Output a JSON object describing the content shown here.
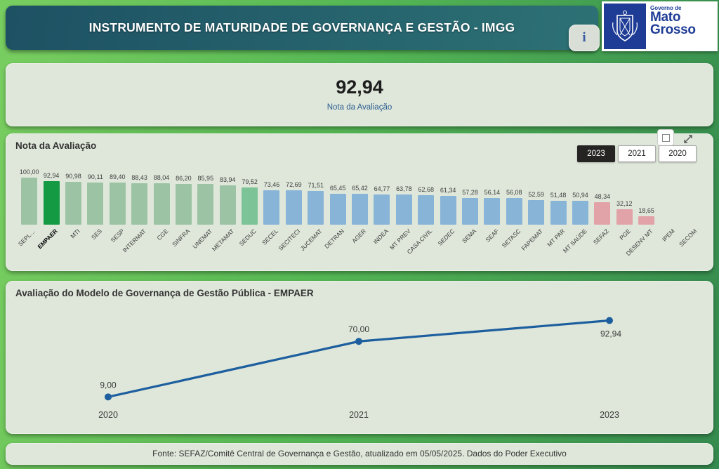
{
  "header": {
    "title": "INSTRUMENTO DE MATURIDADE DE GOVERNANÇA E GESTÃO - IMGG",
    "info_icon": "i",
    "logo": {
      "small": "Governo de",
      "line1": "Mato",
      "line2": "Grosso"
    }
  },
  "kpi": {
    "value": "92,94",
    "label": "Nota da Avaliação"
  },
  "bar_card": {
    "title": "Nota da Avaliação",
    "year_buttons": [
      {
        "label": "2023",
        "selected": true
      },
      {
        "label": "2021",
        "selected": false
      },
      {
        "label": "2020",
        "selected": false
      }
    ]
  },
  "palette": {
    "light_green": "#9cc4a4",
    "dark_green": "#149a43",
    "medium_green": "#7cc397",
    "blue": "#88b4d8",
    "pink": "#e2a3a8",
    "line_blue": "#1d5f9e"
  },
  "chart_data": [
    {
      "type": "bar",
      "title": "Nota da Avaliação",
      "categories": [
        "SEPL…",
        "EMPAER",
        "MTI",
        "SES",
        "SESP",
        "INTERMAT",
        "CGE",
        "SINFRA",
        "UNEMAT",
        "METAMAT",
        "SEDUC",
        "SECEL",
        "SECITECI",
        "JUCEMAT",
        "DETRAN",
        "AGER",
        "INDEA",
        "MT PREV",
        "CASA CIVIL",
        "SEDEC",
        "SEMA",
        "SEAF",
        "SETASC",
        "FAPEMAT",
        "MT PAR",
        "MT SAÚDE",
        "SEFAZ",
        "PGE",
        "DESENV MT",
        "IPEM",
        "SECOM"
      ],
      "values": [
        100.0,
        92.94,
        90.98,
        90.11,
        89.4,
        88.43,
        88.04,
        86.2,
        85.95,
        83.94,
        79.52,
        73.46,
        72.69,
        71.51,
        65.45,
        65.42,
        64.77,
        63.78,
        62.68,
        61.34,
        57.28,
        56.14,
        56.08,
        52.59,
        51.48,
        50.94,
        48.34,
        32.12,
        18.65,
        null,
        null
      ],
      "value_labels": [
        "100,00",
        "92,94",
        "90,98",
        "90,11",
        "89,40",
        "88,43",
        "88,04",
        "86,20",
        "85,95",
        "83,94",
        "79,52",
        "73,46",
        "72,69",
        "71,51",
        "65,45",
        "65,42",
        "64,77",
        "63,78",
        "62,68",
        "61,34",
        "57,28",
        "56,14",
        "56,08",
        "52,59",
        "51,48",
        "50,94",
        "48,34",
        "32,12",
        "18,65",
        "",
        ""
      ],
      "bar_colors": [
        "light_green",
        "dark_green",
        "light_green",
        "light_green",
        "light_green",
        "light_green",
        "light_green",
        "light_green",
        "light_green",
        "light_green",
        "medium_green",
        "blue",
        "blue",
        "blue",
        "blue",
        "blue",
        "blue",
        "blue",
        "blue",
        "blue",
        "blue",
        "blue",
        "blue",
        "blue",
        "blue",
        "blue",
        "pink",
        "pink",
        "pink",
        null,
        null
      ],
      "highlight": "EMPAER",
      "ylim": [
        0,
        100
      ],
      "grid": false,
      "legend": false
    },
    {
      "type": "line",
      "title": "Avaliação do Modelo de Governança de Gestão Pública - EMPAER",
      "x": [
        "2020",
        "2021",
        "2023"
      ],
      "values": [
        9.0,
        70.0,
        92.94
      ],
      "value_labels": [
        "9,00",
        "70,00",
        "92,94"
      ],
      "ylim": [
        0,
        100
      ],
      "grid": false,
      "legend": false
    }
  ],
  "footer": {
    "text": "Fonte: SEFAZ/Comitê Central de Governança e Gestão, atualizado em 05/05/2025. Dados do Poder Executivo"
  }
}
